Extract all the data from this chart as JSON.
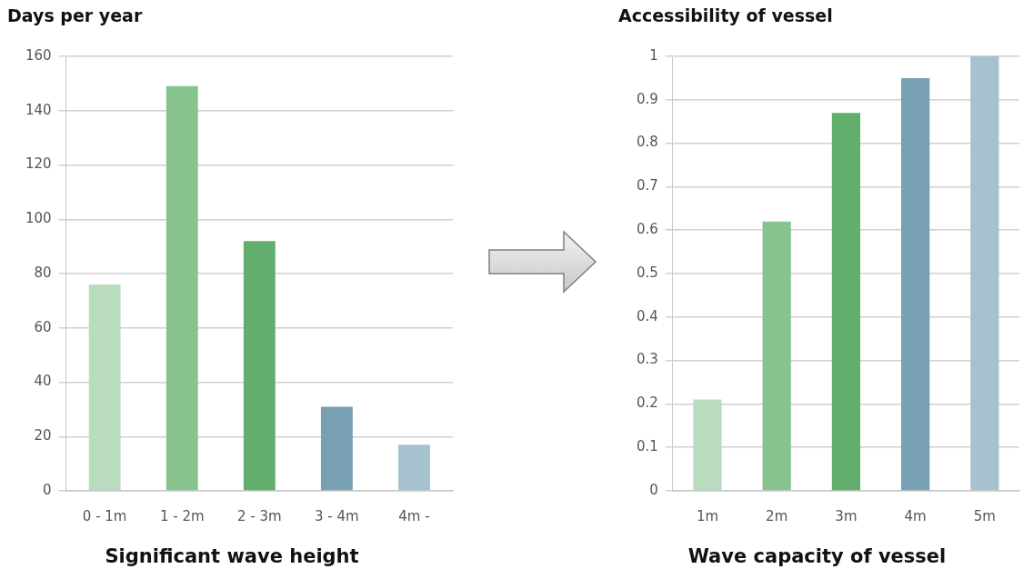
{
  "chart_data": [
    {
      "type": "bar",
      "ylabel": "Days per year",
      "xlabel": "Significant wave height",
      "categories": [
        "0 - 1m",
        "1 - 2m",
        "2 - 3m",
        "3 - 4m",
        "4m -"
      ],
      "values": [
        76,
        149,
        92,
        31,
        17
      ],
      "colors": [
        "#badcbe",
        "#86c38e",
        "#62ae6c",
        "#77a0b2",
        "#a6c2ce"
      ],
      "ylim": [
        0,
        160
      ],
      "yticks": [
        0,
        20,
        40,
        60,
        80,
        100,
        120,
        140,
        160
      ],
      "grid": "y",
      "legend": false
    },
    {
      "type": "bar",
      "ylabel": "Accessibility of vessel",
      "xlabel": "Wave capacity of vessel",
      "categories": [
        "1m",
        "2m",
        "3m",
        "4m",
        "5m"
      ],
      "values": [
        0.21,
        0.62,
        0.87,
        0.95,
        1
      ],
      "colors": [
        "#badcbe",
        "#86c38e",
        "#62ae6c",
        "#77a0b2",
        "#a6c2ce"
      ],
      "ylim": [
        0,
        1
      ],
      "yticks": [
        0,
        0.1,
        0.2,
        0.3,
        0.4,
        0.5,
        0.6,
        0.7,
        0.8,
        0.9,
        1
      ],
      "grid": "y",
      "legend": false
    }
  ]
}
